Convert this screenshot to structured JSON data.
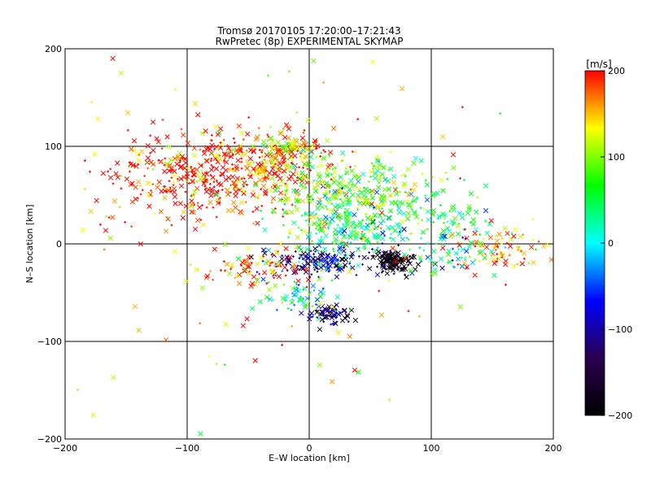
{
  "chart_data": {
    "type": "scatter",
    "title": "Tromsø 20170105 17:20:00–17:21:43",
    "subtitle": "RwPretec (8p) EXPERIMENTAL SKYMAP",
    "xlabel": "E–W location [km]",
    "ylabel": "N–S location [km]",
    "xlim": [
      -200,
      200
    ],
    "ylim": [
      -200,
      200
    ],
    "xticks": [
      -200,
      -100,
      0,
      100,
      200
    ],
    "yticks": [
      -200,
      -100,
      0,
      100,
      200
    ],
    "xtick_labels": [
      "−200",
      "−100",
      "0",
      "100",
      "200"
    ],
    "ytick_labels": [
      "−200",
      "−100",
      "0",
      "100",
      "200"
    ],
    "grid": true,
    "markers": [
      "x",
      "+"
    ],
    "colorbar": {
      "label": "[m/s]",
      "range": [
        -200,
        200
      ],
      "ticks": [
        -200,
        -100,
        0,
        100,
        200
      ],
      "tick_labels": [
        "−200",
        "−100",
        "0",
        "100",
        "200"
      ],
      "colormap": "rainbow",
      "colors": [
        "#000000",
        "#2a0050",
        "#0000ff",
        "#00ffff",
        "#00ff00",
        "#ffff00",
        "#ff0000"
      ]
    },
    "clusters": [
      {
        "x": -90,
        "y": 70,
        "sx": 40,
        "sy": 22,
        "n": 420,
        "vel": 195
      },
      {
        "x": -25,
        "y": 85,
        "sx": 22,
        "sy": 18,
        "n": 160,
        "vel": 175
      },
      {
        "x": -15,
        "y": 98,
        "sx": 12,
        "sy": 5,
        "n": 70,
        "vel": 140
      },
      {
        "x": 10,
        "y": 60,
        "sx": 25,
        "sy": 25,
        "n": 140,
        "vel": 100
      },
      {
        "x": 40,
        "y": 35,
        "sx": 30,
        "sy": 20,
        "n": 200,
        "vel": 60
      },
      {
        "x": 60,
        "y": 55,
        "sx": 25,
        "sy": 20,
        "n": 100,
        "vel": 90
      },
      {
        "x": 25,
        "y": 10,
        "sx": 18,
        "sy": 12,
        "n": 120,
        "vel": 30
      },
      {
        "x": 5,
        "y": -18,
        "sx": 22,
        "sy": 7,
        "n": 140,
        "vel": -100
      },
      {
        "x": -40,
        "y": -25,
        "sx": 20,
        "sy": 10,
        "n": 80,
        "vel": 180
      },
      {
        "x": -10,
        "y": -55,
        "sx": 15,
        "sy": 8,
        "n": 60,
        "vel": 20
      },
      {
        "x": 20,
        "y": -73,
        "sx": 9,
        "sy": 5,
        "n": 60,
        "vel": -130
      },
      {
        "x": 70,
        "y": -18,
        "sx": 8,
        "sy": 6,
        "n": 120,
        "vel": -200
      },
      {
        "x": 120,
        "y": 25,
        "sx": 20,
        "sy": 12,
        "n": 60,
        "vel": 60
      },
      {
        "x": 155,
        "y": -5,
        "sx": 20,
        "sy": 10,
        "n": 90,
        "vel": 170
      },
      {
        "x": 110,
        "y": -10,
        "sx": 20,
        "sy": 10,
        "n": 60,
        "vel": 0
      },
      {
        "x": 0,
        "y": 0,
        "sx": 95,
        "sy": 95,
        "n": 130,
        "vel": 150
      }
    ],
    "velocity_spread": 50
  }
}
